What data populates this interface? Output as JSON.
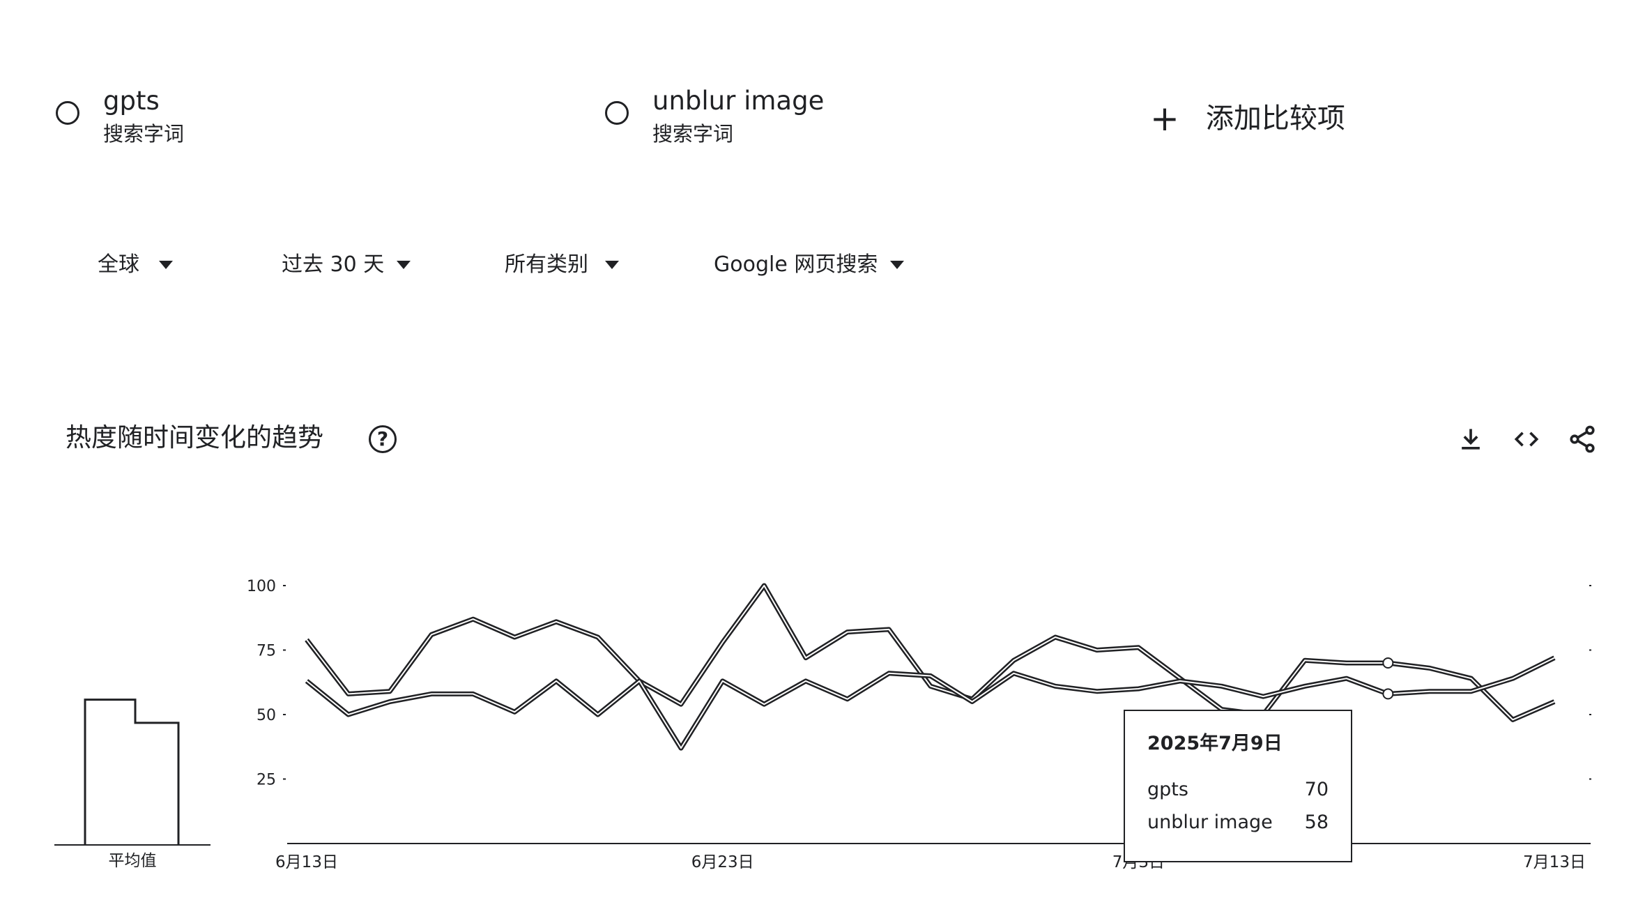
{
  "terms": [
    {
      "name": "gpts",
      "type": "搜索字词"
    },
    {
      "name": "unblur image",
      "type": "搜索字词"
    }
  ],
  "add_compare": {
    "icon": "+",
    "label": "添加比较项"
  },
  "filters": {
    "region": "全球",
    "time": "过去 30 天",
    "category": "所有类别",
    "property": "Google 网页搜索"
  },
  "section": {
    "title": "热度随时间变化的趋势",
    "help_icon": "?"
  },
  "toolbar_icons": [
    "download-icon",
    "embed-icon",
    "share-icon"
  ],
  "avg": {
    "label": "平均值"
  },
  "tooltip": {
    "date": "2025年7月9日",
    "rows": [
      {
        "name": "gpts",
        "value": "70"
      },
      {
        "name": "unblur image",
        "value": "58"
      }
    ]
  },
  "chart_data": {
    "type": "line",
    "ylim": [
      0,
      100
    ],
    "yticks": [
      "100",
      "75",
      "50",
      "25"
    ],
    "x_labels_visible": [
      "6月13日",
      "6月23日",
      "7月3日",
      "7月13日"
    ],
    "x": [
      "6-13",
      "6-14",
      "6-15",
      "6-16",
      "6-17",
      "6-18",
      "6-19",
      "6-20",
      "6-21",
      "6-22",
      "6-23",
      "6-24",
      "6-25",
      "6-26",
      "6-27",
      "6-28",
      "6-29",
      "6-30",
      "7-1",
      "7-2",
      "7-3",
      "7-4",
      "7-5",
      "7-6",
      "7-7",
      "7-8",
      "7-9",
      "7-10",
      "7-11",
      "7-12",
      "7-13"
    ],
    "series": [
      {
        "name": "gpts",
        "values": [
          79,
          58,
          59,
          81,
          87,
          80,
          86,
          80,
          63,
          54,
          78,
          100,
          72,
          82,
          83,
          61,
          56,
          71,
          80,
          75,
          76,
          64,
          52,
          50,
          71,
          70,
          70,
          68,
          64,
          48,
          55
        ]
      },
      {
        "name": "unblur image",
        "values": [
          63,
          50,
          55,
          58,
          58,
          51,
          63,
          50,
          63,
          37,
          63,
          54,
          63,
          56,
          66,
          65,
          55,
          66,
          61,
          59,
          60,
          63,
          61,
          57,
          61,
          64,
          58,
          59,
          59,
          64,
          72
        ]
      }
    ],
    "averages": {
      "gpts": 69,
      "unblur image": 58
    }
  }
}
